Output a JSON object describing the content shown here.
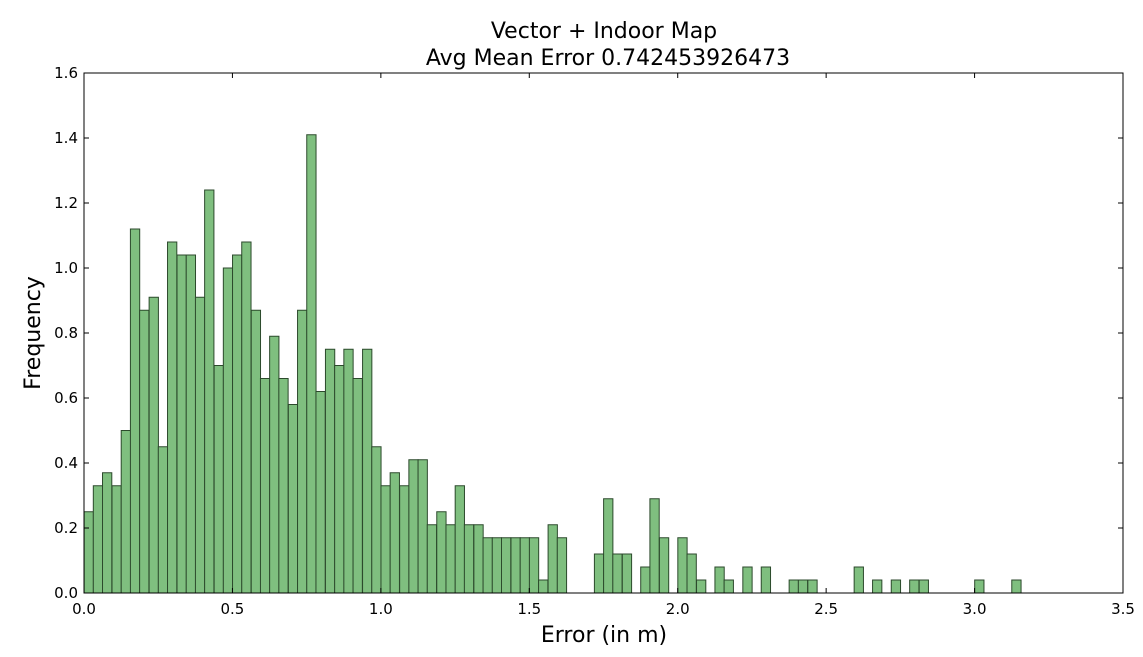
{
  "chart_data": {
    "type": "bar",
    "title": "Vector + Indoor Map",
    "subtitle": "Avg Mean Error 0.742453926473",
    "xlabel": "Error (in m)",
    "ylabel": "Frequency",
    "xlim": [
      0.0,
      3.5
    ],
    "ylim": [
      0.0,
      1.6
    ],
    "xticks": [
      "0.0",
      "0.5",
      "1.0",
      "1.5",
      "2.0",
      "2.5",
      "3.0",
      "3.5"
    ],
    "yticks": [
      "0.0",
      "0.2",
      "0.4",
      "0.6",
      "0.8",
      "1.0",
      "1.2",
      "1.4",
      "1.6"
    ],
    "grid": false,
    "bin_width": 0.0313,
    "colors": {
      "bar_fill": "#7fbf7f",
      "bar_edge": "#2c4a2c"
    },
    "x": [
      0.016,
      0.047,
      0.078,
      0.11,
      0.141,
      0.172,
      0.203,
      0.235,
      0.266,
      0.297,
      0.329,
      0.36,
      0.391,
      0.422,
      0.454,
      0.485,
      0.516,
      0.547,
      0.579,
      0.61,
      0.641,
      0.672,
      0.704,
      0.735,
      0.766,
      0.797,
      0.829,
      0.86,
      0.891,
      0.922,
      0.954,
      0.985,
      1.016,
      1.047,
      1.079,
      1.11,
      1.141,
      1.172,
      1.204,
      1.235,
      1.266,
      1.297,
      1.329,
      1.36,
      1.391,
      1.422,
      1.454,
      1.485,
      1.516,
      1.547,
      1.579,
      1.61,
      1.735,
      1.766,
      1.797,
      1.829,
      1.891,
      1.922,
      1.954,
      2.016,
      2.047,
      2.079,
      2.141,
      2.172,
      2.235,
      2.297,
      2.391,
      2.422,
      2.454,
      2.61,
      2.672,
      2.735,
      2.797,
      2.829,
      3.016,
      3.141
    ],
    "values": [
      0.25,
      0.33,
      0.37,
      0.33,
      0.5,
      1.12,
      0.87,
      0.91,
      0.45,
      1.08,
      1.04,
      1.04,
      0.91,
      1.24,
      0.7,
      1.0,
      1.04,
      1.08,
      0.87,
      0.66,
      0.79,
      0.66,
      0.58,
      0.87,
      1.41,
      0.62,
      0.75,
      0.7,
      0.75,
      0.66,
      0.75,
      0.45,
      0.33,
      0.37,
      0.33,
      0.41,
      0.41,
      0.21,
      0.25,
      0.21,
      0.33,
      0.21,
      0.21,
      0.17,
      0.17,
      0.17,
      0.17,
      0.17,
      0.17,
      0.04,
      0.21,
      0.17,
      0.12,
      0.29,
      0.12,
      0.12,
      0.08,
      0.29,
      0.17,
      0.17,
      0.12,
      0.04,
      0.08,
      0.04,
      0.08,
      0.08,
      0.04,
      0.04,
      0.04,
      0.08,
      0.04,
      0.04,
      0.04,
      0.04,
      0.04,
      0.04
    ]
  }
}
